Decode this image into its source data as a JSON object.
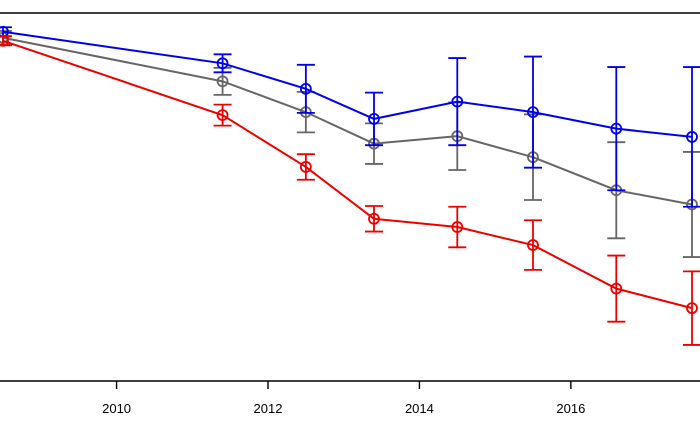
{
  "chart_data": {
    "type": "line",
    "title": "",
    "xlabel": "",
    "ylabel": "",
    "xlim": [
      2008.5,
      2017.7
    ],
    "ylim": [
      0.53,
      1.02
    ],
    "x_ticks": [
      {
        "value": 2010,
        "label": "2010"
      },
      {
        "value": 2012,
        "label": "2012"
      },
      {
        "value": 2014,
        "label": "2014"
      },
      {
        "value": 2016,
        "label": "2016"
      }
    ],
    "grid": false,
    "legend": "none",
    "series": [
      {
        "color": "#666666",
        "x": [
          2008.5,
          2011.4,
          2012.5,
          2013.4,
          2014.5,
          2015.5,
          2016.6,
          2017.6
        ],
        "y": [
          0.987,
          0.929,
          0.888,
          0.846,
          0.856,
          0.828,
          0.784,
          0.765
        ],
        "err": [
          0.009,
          0.018,
          0.027,
          0.027,
          0.045,
          0.057,
          0.064,
          0.07
        ]
      },
      {
        "color": "#0000ee",
        "x": [
          2008.5,
          2011.4,
          2012.5,
          2013.4,
          2014.5,
          2015.5,
          2016.6,
          2017.6
        ],
        "y": [
          0.995,
          0.953,
          0.919,
          0.879,
          0.902,
          0.888,
          0.866,
          0.855
        ],
        "err": [
          0.006,
          0.012,
          0.032,
          0.035,
          0.058,
          0.074,
          0.082,
          0.093
        ]
      },
      {
        "color": "#ee0000",
        "x": [
          2008.5,
          2011.4,
          2012.5,
          2013.4,
          2014.5,
          2015.5,
          2016.6,
          2017.6
        ],
        "y": [
          0.983,
          0.884,
          0.815,
          0.746,
          0.735,
          0.711,
          0.653,
          0.627
        ],
        "err": [
          0.006,
          0.014,
          0.017,
          0.017,
          0.027,
          0.033,
          0.044,
          0.049
        ]
      }
    ]
  }
}
